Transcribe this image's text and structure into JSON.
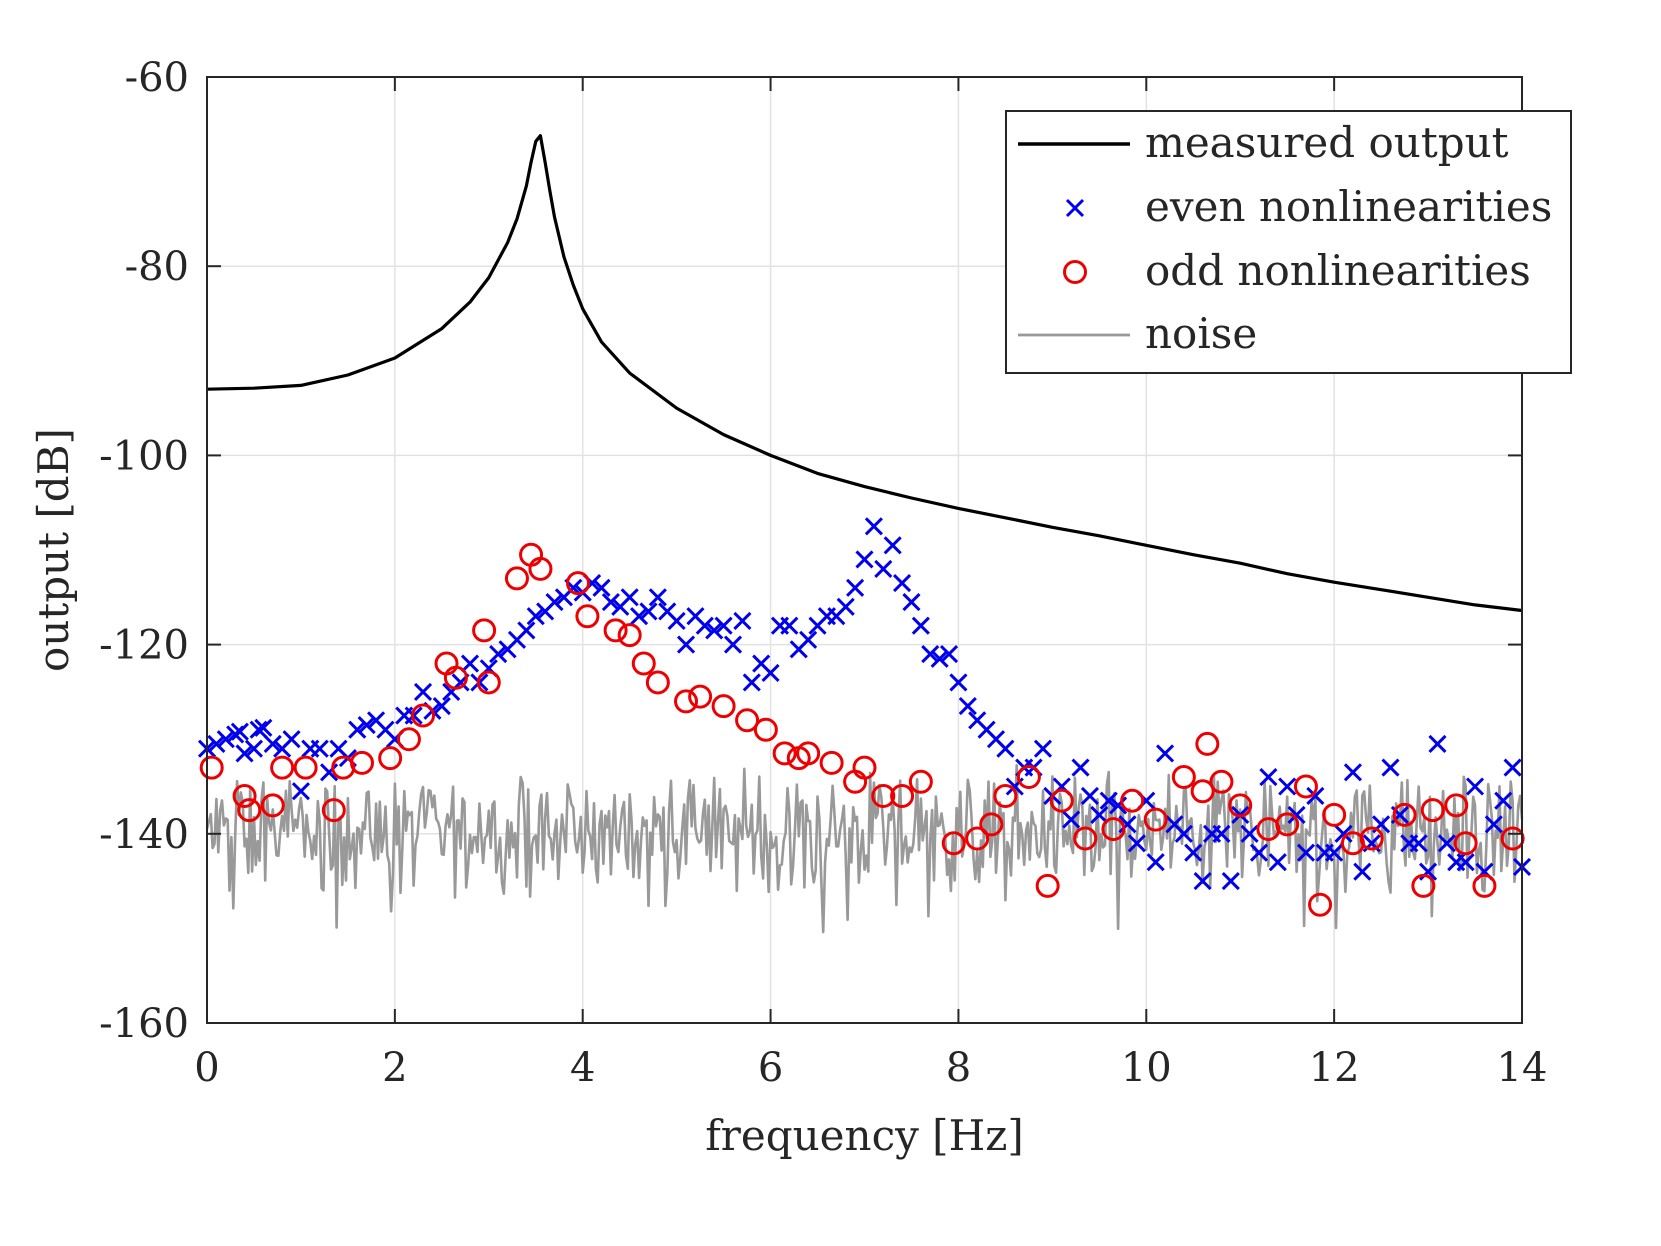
{
  "chart_data": {
    "type": "line",
    "title": "",
    "xlabel": "frequency [Hz]",
    "ylabel": "output [dB]",
    "xlim": [
      0,
      14
    ],
    "ylim": [
      -160,
      -60
    ],
    "xticks": [
      0,
      2,
      4,
      6,
      8,
      10,
      12,
      14
    ],
    "yticks": [
      -160,
      -140,
      -120,
      -100,
      -80,
      -60
    ],
    "xtick_labels": [
      "0",
      "2",
      "4",
      "6",
      "8",
      "10",
      "12",
      "14"
    ],
    "ytick_labels": [
      "-160",
      "-140",
      "-120",
      "-100",
      "-80",
      "-60"
    ],
    "grid": true,
    "legend_position": "top-right",
    "series": [
      {
        "name": "measured output",
        "kind": "line",
        "color": "#000000",
        "x": [
          0,
          0.5,
          1.0,
          1.5,
          2.0,
          2.5,
          2.8,
          3.0,
          3.2,
          3.3,
          3.4,
          3.45,
          3.5,
          3.55,
          3.6,
          3.65,
          3.7,
          3.8,
          3.9,
          4.0,
          4.2,
          4.5,
          5.0,
          5.5,
          6.0,
          6.5,
          7.0,
          7.5,
          8.0,
          8.5,
          9.0,
          9.5,
          10.0,
          10.5,
          11.0,
          11.5,
          12.0,
          12.5,
          13.0,
          13.5,
          14.0
        ],
        "y": [
          -93,
          -92.9,
          -92.6,
          -91.5,
          -89.7,
          -86.6,
          -83.8,
          -81.2,
          -77.5,
          -75.0,
          -71.5,
          -69.0,
          -66.8,
          -66.2,
          -69.0,
          -72.0,
          -74.8,
          -79.0,
          -82.0,
          -84.5,
          -88.0,
          -91.3,
          -95.0,
          -97.8,
          -100.0,
          -101.9,
          -103.3,
          -104.5,
          -105.6,
          -106.6,
          -107.6,
          -108.5,
          -109.5,
          -110.5,
          -111.4,
          -112.5,
          -113.4,
          -114.2,
          -115.0,
          -115.8,
          -116.4
        ]
      },
      {
        "name": "even nonlinearities",
        "kind": "markers-x",
        "color": "#0000ee",
        "x": [
          0.0,
          0.1,
          0.2,
          0.3,
          0.35,
          0.4,
          0.5,
          0.55,
          0.6,
          0.7,
          0.8,
          0.9,
          1.0,
          1.1,
          1.2,
          1.3,
          1.4,
          1.5,
          1.6,
          1.7,
          1.8,
          1.9,
          2.0,
          2.1,
          2.2,
          2.3,
          2.4,
          2.5,
          2.6,
          2.7,
          2.8,
          2.9,
          3.0,
          3.1,
          3.2,
          3.3,
          3.4,
          3.5,
          3.6,
          3.7,
          3.8,
          3.9,
          4.0,
          4.1,
          4.2,
          4.3,
          4.4,
          4.5,
          4.6,
          4.7,
          4.8,
          4.9,
          5.0,
          5.1,
          5.2,
          5.3,
          5.4,
          5.5,
          5.6,
          5.7,
          5.8,
          5.9,
          6.0,
          6.1,
          6.2,
          6.3,
          6.4,
          6.5,
          6.6,
          6.7,
          6.8,
          6.9,
          7.0,
          7.1,
          7.2,
          7.3,
          7.4,
          7.5,
          7.6,
          7.7,
          7.8,
          7.9,
          8.0,
          8.1,
          8.2,
          8.3,
          8.4,
          8.5,
          8.6,
          8.7,
          8.8,
          8.9,
          9.0,
          9.1,
          9.2,
          9.3,
          9.4,
          9.5,
          9.6,
          9.7,
          9.8,
          9.9,
          10.0,
          10.1,
          10.2,
          10.3,
          10.4,
          10.5,
          10.6,
          10.7,
          10.8,
          10.9,
          11.0,
          11.1,
          11.2,
          11.3,
          11.4,
          11.5,
          11.6,
          11.7,
          11.8,
          11.9,
          12.0,
          12.1,
          12.2,
          12.3,
          12.4,
          12.5,
          12.6,
          12.7,
          12.8,
          12.9,
          13.0,
          13.1,
          13.2,
          13.3,
          13.4,
          13.5,
          13.6,
          13.7,
          13.8,
          13.9,
          14.0
        ],
        "y": [
          -131,
          -130.5,
          -130,
          -129.5,
          -129.2,
          -131.5,
          -131,
          -129,
          -128.8,
          -130.5,
          -131,
          -130,
          -135.5,
          -131,
          -131,
          -133.5,
          -131,
          -132,
          -129,
          -128.5,
          -128,
          -129,
          -130,
          -127.5,
          -127.5,
          -125,
          -127,
          -126.5,
          -125,
          -124,
          -122,
          -124,
          -122.5,
          -121,
          -120.5,
          -119.5,
          -118.5,
          -117,
          -116.5,
          -115.5,
          -115,
          -114,
          -114.5,
          -113.5,
          -114,
          -115.5,
          -116,
          -115,
          -117,
          -116.5,
          -115,
          -116.5,
          -117.5,
          -120,
          -117,
          -118,
          -118.5,
          -118,
          -120,
          -117.5,
          -124,
          -122,
          -123,
          -118,
          -118,
          -120.5,
          -119.5,
          -118,
          -117,
          -117,
          -116,
          -114,
          -111,
          -107.5,
          -112,
          -109.5,
          -113.5,
          -115.5,
          -118,
          -121,
          -121.5,
          -121,
          -124,
          -126.5,
          -128,
          -129,
          -130,
          -131,
          -135,
          -133,
          -133,
          -131,
          -136,
          -135,
          -138.5,
          -133,
          -136,
          -138,
          -136.5,
          -137,
          -139,
          -141,
          -136.5,
          -143,
          -131.5,
          -139,
          -140,
          -142,
          -145,
          -140,
          -140,
          -145,
          -138,
          -140,
          -142,
          -134,
          -143,
          -135,
          -138,
          -142,
          -136,
          -142,
          -142,
          -140,
          -133.5,
          -144,
          -141,
          -139,
          -133,
          -138,
          -141,
          -141,
          -144,
          -130.5,
          -141,
          -143,
          -143,
          -135,
          -144,
          -139,
          -136.5,
          -133,
          -143.5
        ]
      },
      {
        "name": "odd nonlinearities",
        "kind": "markers-o",
        "color": "#ee0000",
        "x": [
          0.05,
          0.4,
          0.45,
          0.7,
          0.8,
          1.05,
          1.35,
          1.45,
          1.65,
          1.95,
          2.15,
          2.3,
          2.55,
          2.65,
          2.95,
          3.0,
          3.3,
          3.45,
          3.55,
          3.95,
          4.05,
          4.35,
          4.5,
          4.65,
          4.8,
          5.1,
          5.25,
          5.5,
          5.75,
          5.95,
          6.15,
          6.3,
          6.4,
          6.65,
          6.9,
          7.0,
          7.2,
          7.4,
          7.6,
          7.95,
          8.2,
          8.35,
          8.5,
          8.75,
          8.95,
          9.1,
          9.35,
          9.65,
          9.85,
          10.1,
          10.4,
          10.6,
          10.65,
          10.8,
          11.0,
          11.3,
          11.5,
          11.7,
          11.85,
          12.0,
          12.2,
          12.4,
          12.75,
          12.95,
          13.05,
          13.3,
          13.4,
          13.6,
          13.9
        ],
        "y": [
          -133,
          -136,
          -137.5,
          -137,
          -133,
          -133,
          -137.5,
          -133,
          -132.5,
          -132,
          -130,
          -127.5,
          -122,
          -123.5,
          -118.5,
          -124,
          -113,
          -110.5,
          -112,
          -113.5,
          -117,
          -118.5,
          -119,
          -122,
          -124,
          -126,
          -125.5,
          -126.5,
          -128,
          -129,
          -131.5,
          -132,
          -131.5,
          -132.5,
          -134.5,
          -133,
          -136,
          -136,
          -134.5,
          -141,
          -140.5,
          -139,
          -136,
          -134,
          -145.5,
          -136.5,
          -140.5,
          -139.5,
          -136.5,
          -138.5,
          -134,
          -135.5,
          -130.5,
          -134.5,
          -137,
          -139.5,
          -139,
          -135,
          -147.5,
          -138,
          -141,
          -140.5,
          -138,
          -145.5,
          -137.5,
          -137,
          -141,
          -145.5,
          -140.5
        ]
      },
      {
        "name": "noise",
        "kind": "line",
        "color": "#999999",
        "level_db": -140,
        "x_range": [
          0,
          14
        ],
        "approx_spread_db": 4,
        "min_db": -151
      }
    ]
  },
  "legend": {
    "items": [
      {
        "label": "measured output",
        "icon": "solid-line-icon",
        "color": "#000000"
      },
      {
        "label": "even nonlinearities",
        "icon": "cross-marker-icon",
        "color": "#0000ee"
      },
      {
        "label": "odd nonlinearities",
        "icon": "circle-marker-icon",
        "color": "#ee0000"
      },
      {
        "label": "noise",
        "icon": "solid-line-icon",
        "color": "#999999"
      }
    ]
  }
}
